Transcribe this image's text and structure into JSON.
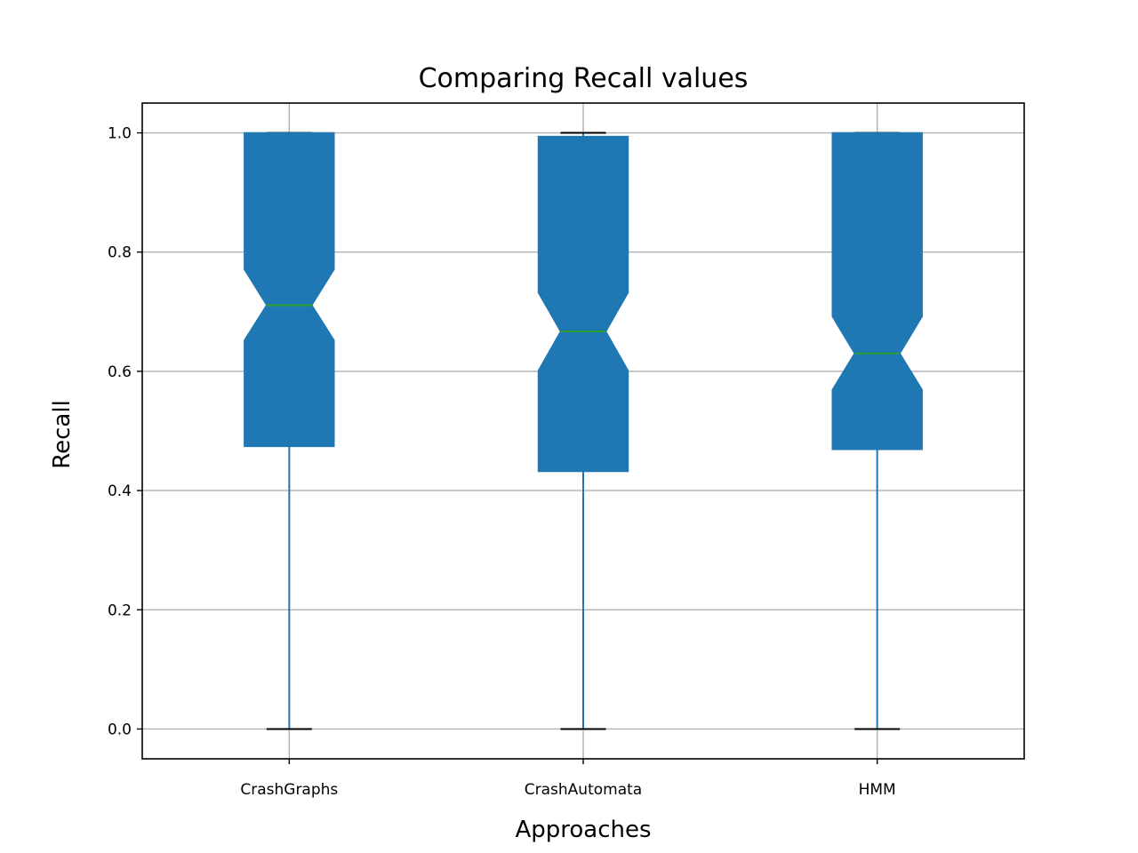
{
  "chart_data": {
    "type": "boxplot",
    "title": "Comparing Recall values",
    "xlabel": "Approaches",
    "ylabel": "Recall",
    "ylim": [
      -0.05,
      1.05
    ],
    "yticks": [
      0.0,
      0.2,
      0.4,
      0.6,
      0.8,
      1.0
    ],
    "ytick_labels": [
      "0.0",
      "0.2",
      "0.4",
      "0.6",
      "0.8",
      "1.0"
    ],
    "grid": true,
    "notched": true,
    "categories": [
      "CrashGraphs",
      "CrashAutomata",
      "HMM"
    ],
    "boxes": [
      {
        "name": "CrashGraphs",
        "whisker_low": 0.0,
        "q1": 0.474,
        "notch_low": 0.652,
        "median": 0.711,
        "notch_high": 0.771,
        "q3": 1.0,
        "whisker_high": 1.0
      },
      {
        "name": "CrashAutomata",
        "whisker_low": 0.0,
        "q1": 0.432,
        "notch_low": 0.601,
        "median": 0.667,
        "notch_high": 0.732,
        "q3": 0.994,
        "whisker_high": 1.0
      },
      {
        "name": "HMM",
        "whisker_low": 0.0,
        "q1": 0.469,
        "notch_low": 0.569,
        "median": 0.63,
        "notch_high": 0.692,
        "q3": 1.0,
        "whisker_high": 1.0
      }
    ],
    "colors": {
      "box_fill": "#1f77b4",
      "whisker": "#1f77b4",
      "cap": "#000000",
      "median": "#2ca02c",
      "grid": "#b0b0b0",
      "frame": "#000000"
    }
  }
}
